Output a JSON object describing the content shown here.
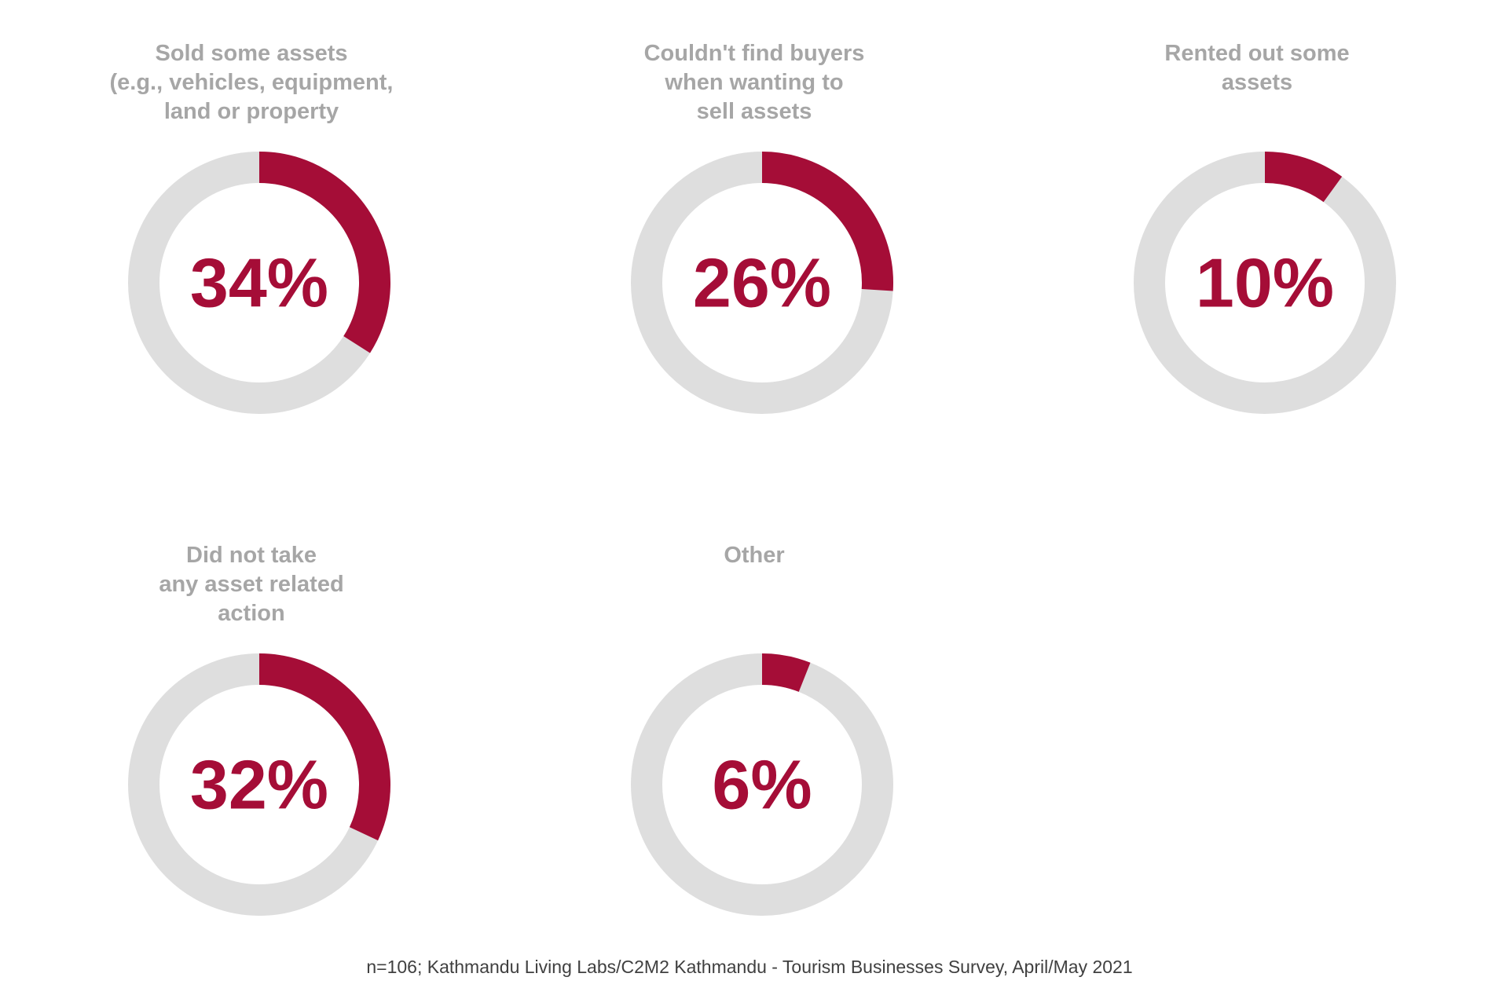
{
  "chart_data": [
    {
      "type": "pie",
      "title": [
        "Sold some assets",
        "(e.g., vehicles, equipment,",
        "land or property"
      ],
      "value": 34,
      "label": "34%"
    },
    {
      "type": "pie",
      "title": [
        "Couldn't find buyers",
        "when wanting to",
        "sell assets"
      ],
      "value": 26,
      "label": "26%"
    },
    {
      "type": "pie",
      "title": [
        "Rented out some",
        "assets"
      ],
      "value": 10,
      "label": "10%"
    },
    {
      "type": "pie",
      "title": [
        "Did not take",
        "any asset related",
        "action"
      ],
      "value": 32,
      "label": "32%"
    },
    {
      "type": "pie",
      "title": [
        "Other"
      ],
      "value": 6,
      "label": "6%"
    }
  ],
  "source_note": "n=106; Kathmandu Living Labs/C2M2 Kathmandu - Tourism Businesses Survey, April/May 2021",
  "colors": {
    "highlight": "#a50d37",
    "track": "#dedede",
    "title": "#a6a6a6",
    "note": "#404040"
  }
}
